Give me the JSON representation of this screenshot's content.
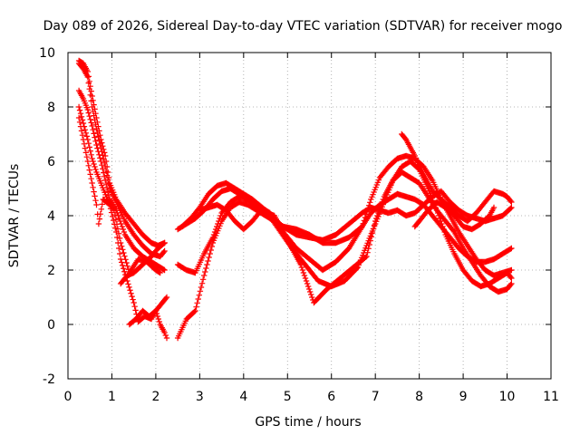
{
  "chart_data": {
    "type": "scatter",
    "title": "Day 089 of 2026, Sidereal Day-to-day VTEC variation (SDTVAR) for receiver mogo",
    "xlabel": "GPS time / hours",
    "ylabel": "SDTVAR / TECUs",
    "xlim": [
      0,
      11
    ],
    "ylim": [
      -2,
      10
    ],
    "xticks": [
      "0",
      "1",
      "2",
      "3",
      "4",
      "5",
      "6",
      "7",
      "8",
      "9",
      "10",
      "11"
    ],
    "yticks": [
      "-2",
      "0",
      "2",
      "4",
      "6",
      "8",
      "10"
    ],
    "marker": "plus",
    "color": "#ff0000",
    "series": [
      {
        "name": "trace-1",
        "x": [
          0.25,
          0.35,
          0.45,
          0.55,
          0.65,
          0.75,
          0.85,
          0.95,
          1.1,
          1.3,
          1.5,
          1.7,
          1.9,
          2.05,
          2.2
        ],
        "y": [
          9.7,
          9.6,
          9.3,
          8.4,
          7.6,
          6.8,
          6.2,
          5.2,
          4.6,
          4.1,
          3.7,
          3.3,
          3.0,
          2.9,
          3.0
        ]
      },
      {
        "name": "trace-2",
        "x": [
          0.25,
          0.35,
          0.45,
          0.55,
          0.65,
          0.75,
          0.85,
          0.95,
          1.1,
          1.3,
          1.5,
          1.7,
          1.9,
          2.1,
          2.2
        ],
        "y": [
          9.6,
          9.4,
          9.1,
          8.0,
          7.2,
          6.5,
          5.8,
          5.0,
          4.5,
          3.8,
          3.3,
          2.9,
          2.6,
          2.5,
          2.7
        ]
      },
      {
        "name": "trace-3",
        "x": [
          0.25,
          0.35,
          0.45,
          0.55,
          0.65,
          0.75,
          0.85,
          0.95,
          1.1,
          1.3,
          1.5,
          1.7,
          1.9,
          2.1,
          2.2
        ],
        "y": [
          8.6,
          8.3,
          7.9,
          7.3,
          6.6,
          6.0,
          5.3,
          4.6,
          4.2,
          3.3,
          2.8,
          2.5,
          2.3,
          2.1,
          2.0
        ]
      },
      {
        "name": "trace-4",
        "x": [
          0.25,
          0.35,
          0.45,
          0.55,
          0.65,
          0.75,
          0.9,
          1.05,
          1.2,
          1.4,
          1.6,
          1.8,
          2.0,
          2.1
        ],
        "y": [
          8.0,
          7.4,
          6.8,
          6.1,
          5.6,
          5.2,
          4.6,
          4.2,
          3.0,
          1.9,
          2.4,
          2.3,
          2.0,
          1.9
        ]
      },
      {
        "name": "trace-5",
        "x": [
          0.25,
          0.35,
          0.45,
          0.55,
          0.65,
          0.7,
          0.8,
          0.95,
          1.1,
          1.2,
          1.35,
          1.5,
          1.6,
          1.75,
          1.9,
          2.0,
          2.1,
          2.2,
          2.25
        ],
        "y": [
          7.6,
          6.8,
          6.0,
          5.2,
          4.4,
          3.7,
          4.6,
          4.4,
          3.4,
          2.4,
          1.6,
          0.8,
          0.1,
          0.3,
          0.2,
          0.5,
          0.0,
          -0.3,
          -0.5
        ]
      },
      {
        "name": "trace-6",
        "x": [
          1.2,
          1.35,
          1.5,
          1.7,
          1.9,
          2.05,
          2.2
        ],
        "y": [
          1.5,
          1.8,
          1.9,
          2.2,
          2.5,
          2.8,
          3.0
        ]
      },
      {
        "name": "trace-7",
        "x": [
          1.4,
          1.55,
          1.7,
          1.85,
          2.0,
          2.15,
          2.25
        ],
        "y": [
          0.0,
          0.2,
          0.5,
          0.3,
          0.5,
          0.8,
          1.0
        ]
      },
      {
        "name": "trace-8",
        "x": [
          2.5,
          2.7,
          2.9,
          3.1,
          3.3,
          3.5,
          3.7,
          3.9,
          4.1,
          4.3,
          4.6,
          4.9,
          5.2,
          5.5,
          5.8,
          6.1,
          6.4,
          6.7,
          6.9,
          7.1,
          7.3,
          7.5,
          7.7,
          7.9,
          8.1,
          8.3,
          8.5,
          8.7,
          8.9,
          9.1,
          9.3,
          9.5,
          9.7,
          9.9,
          10.1
        ],
        "y": [
          3.5,
          3.7,
          3.9,
          4.2,
          4.6,
          4.9,
          5.0,
          4.8,
          4.6,
          4.2,
          4.0,
          3.6,
          3.3,
          3.2,
          3.1,
          3.3,
          3.7,
          4.1,
          4.3,
          4.2,
          4.1,
          4.2,
          4.0,
          4.1,
          4.4,
          4.7,
          4.9,
          4.5,
          4.2,
          4.0,
          3.9,
          3.8,
          3.9,
          4.0,
          4.3
        ]
      },
      {
        "name": "trace-9",
        "x": [
          2.5,
          2.7,
          2.9,
          3.1,
          3.3,
          3.5,
          3.7,
          3.9,
          4.1,
          4.3,
          4.6,
          4.9,
          5.2,
          5.5,
          5.8,
          6.1,
          6.4,
          6.7,
          6.9,
          7.1,
          7.3,
          7.5,
          7.7,
          7.9,
          8.1,
          8.3,
          8.5,
          8.7,
          8.9,
          9.1,
          9.3,
          9.5,
          9.7,
          9.9,
          10.1
        ],
        "y": [
          2.2,
          2.0,
          1.9,
          2.6,
          3.2,
          4.1,
          4.5,
          4.7,
          4.6,
          4.4,
          4.1,
          3.4,
          2.8,
          2.4,
          2.0,
          2.3,
          2.8,
          3.6,
          4.6,
          5.4,
          5.8,
          6.1,
          6.2,
          6.1,
          5.8,
          5.3,
          4.6,
          4.0,
          3.4,
          2.9,
          2.4,
          2.0,
          1.8,
          1.9,
          2.0
        ]
      },
      {
        "name": "trace-10",
        "x": [
          2.5,
          2.7,
          2.9,
          3.1,
          3.3,
          3.5,
          3.7,
          3.9,
          4.1,
          4.3,
          4.6,
          4.9,
          5.2,
          5.5,
          5.8,
          6.1,
          6.4,
          6.7,
          6.9,
          7.1,
          7.3,
          7.5,
          7.7,
          7.9,
          8.1,
          8.3,
          8.5,
          8.7,
          8.9,
          9.1,
          9.3,
          9.5,
          9.7,
          9.9,
          10.1
        ],
        "y": [
          -0.5,
          0.2,
          0.5,
          1.8,
          3.0,
          3.8,
          4.3,
          4.5,
          4.4,
          4.2,
          3.9,
          3.6,
          3.5,
          3.3,
          3.0,
          3.0,
          3.2,
          3.6,
          4.1,
          4.4,
          4.6,
          4.8,
          4.7,
          4.6,
          4.4,
          4.0,
          3.6,
          3.2,
          2.8,
          2.5,
          2.3,
          2.3,
          2.4,
          2.6,
          2.8
        ]
      },
      {
        "name": "trace-11",
        "x": [
          2.6,
          2.8,
          3.0,
          3.2,
          3.4,
          3.6,
          3.8,
          4.0,
          4.2,
          4.5,
          4.8,
          5.1,
          5.4,
          5.7,
          6.0,
          6.3,
          6.6,
          6.8,
          7.0,
          7.2,
          7.4,
          7.6,
          7.8,
          8.0,
          8.2,
          8.4,
          8.6,
          8.8,
          9.0,
          9.2,
          9.4,
          9.6,
          9.8,
          10.0,
          10.1
        ],
        "y": [
          3.6,
          3.9,
          4.3,
          4.8,
          5.1,
          5.2,
          5.0,
          4.8,
          4.6,
          4.2,
          3.5,
          2.8,
          2.2,
          1.6,
          1.4,
          1.6,
          2.1,
          2.9,
          3.7,
          4.5,
          5.3,
          5.8,
          6.0,
          5.7,
          5.0,
          4.2,
          3.3,
          2.6,
          2.0,
          1.6,
          1.4,
          1.5,
          1.7,
          1.9,
          1.7
        ]
      },
      {
        "name": "trace-12",
        "x": [
          3.0,
          3.2,
          3.4,
          3.6,
          3.8,
          4.0,
          4.2,
          4.4,
          4.7,
          5.0,
          5.3,
          5.6,
          5.9,
          6.2,
          6.5,
          6.8,
          7.0,
          7.2,
          7.4,
          7.6,
          7.8,
          8.0,
          8.2,
          8.4,
          8.6,
          8.8,
          9.0,
          9.2,
          9.4,
          9.6,
          9.8,
          10.0,
          10.1
        ],
        "y": [
          4.2,
          4.3,
          4.4,
          4.2,
          3.8,
          3.5,
          3.8,
          4.2,
          4.0,
          3.1,
          2.2,
          0.8,
          1.3,
          1.7,
          2.1,
          2.5,
          3.8,
          4.7,
          5.3,
          5.6,
          5.4,
          5.2,
          4.7,
          4.2,
          3.8,
          3.4,
          2.8,
          2.3,
          1.8,
          1.4,
          1.2,
          1.3,
          1.5
        ]
      },
      {
        "name": "trace-13",
        "x": [
          7.6,
          7.7,
          7.8,
          7.9,
          8.0,
          8.1,
          8.2,
          8.3,
          8.5,
          8.7,
          8.9,
          9.1,
          9.3,
          9.5,
          9.7,
          9.9,
          10.0,
          10.1
        ],
        "y": [
          7.0,
          6.8,
          6.5,
          6.2,
          5.8,
          5.5,
          5.2,
          4.9,
          4.6,
          4.3,
          4.0,
          3.8,
          4.1,
          4.5,
          4.9,
          4.8,
          4.7,
          4.5
        ]
      },
      {
        "name": "trace-14",
        "x": [
          7.9,
          8.0,
          8.2,
          8.4,
          8.6,
          8.8,
          9.0,
          9.2,
          9.4,
          9.6,
          9.7
        ],
        "y": [
          3.6,
          3.8,
          4.2,
          4.5,
          4.3,
          4.0,
          3.6,
          3.5,
          3.7,
          4.0,
          4.3
        ]
      }
    ]
  }
}
